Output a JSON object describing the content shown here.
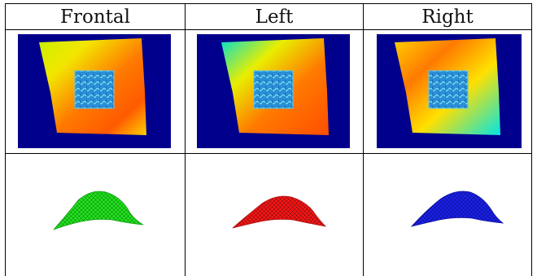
{
  "figure": {
    "columns": [
      {
        "header": "Frontal",
        "mesh_color": "#22e01e"
      },
      {
        "header": "Left",
        "mesh_color": "#f01616"
      },
      {
        "header": "Right",
        "mesh_color": "#1a20e6"
      }
    ],
    "colors": {
      "background_blue": "#00008c",
      "gradient": [
        "#00e6e6",
        "#f2f200",
        "#ff6a00",
        "#ff5000"
      ],
      "texture_base": "#2a8fd6",
      "texture_highlight": "#7ee4f5"
    }
  }
}
